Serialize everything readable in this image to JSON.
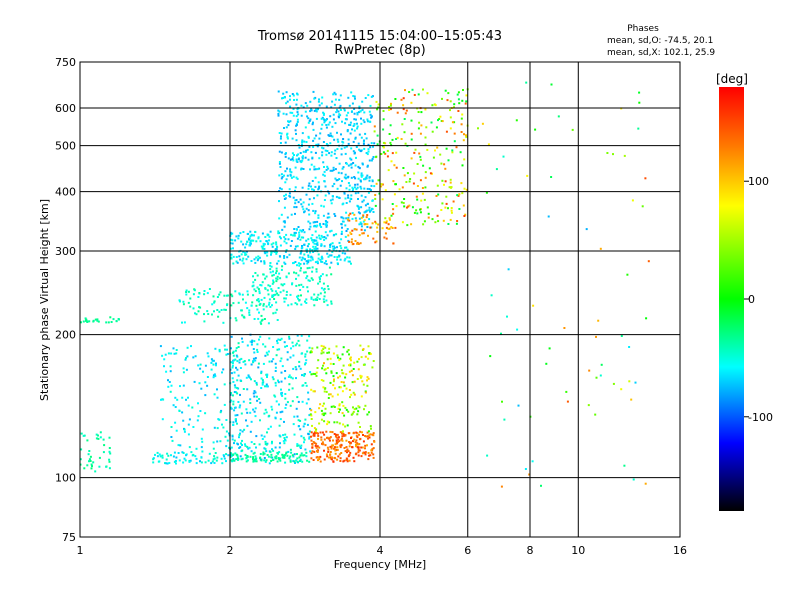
{
  "chart_data": {
    "type": "scatter",
    "title": "Tromsø 20141115 15:04:00–15:05:43",
    "subtitle": "RwPretec (8p)",
    "xlabel": "Frequency [MHz]",
    "ylabel": "Stationary phase Virtual Height [km]",
    "x_scale": "log",
    "y_scale": "log",
    "xlim": [
      1,
      16
    ],
    "ylim": [
      75,
      750
    ],
    "x_ticks": [
      1,
      2,
      4,
      6,
      8,
      10,
      16
    ],
    "y_ticks": [
      75,
      100,
      200,
      300,
      400,
      500,
      600,
      750
    ],
    "grid": true,
    "legend_placement": "top-right",
    "legend": {
      "title": "Phases",
      "line1": "mean, sd,O: -74.5, 20.1",
      "line2": "mean, sd,X: 102.1, 25.9"
    },
    "colorbar": {
      "unit": "[deg]",
      "range": [
        -180,
        180
      ],
      "ticks": [
        100,
        0,
        -100
      ],
      "placement": "right",
      "colormap": "rainbow"
    },
    "regions": [
      {
        "x": [
          1.0,
          1.15
        ],
        "y": [
          103,
          125
        ],
        "phase": [
          -65,
          -35
        ],
        "n": 40
      },
      {
        "x": [
          1.0,
          1.2
        ],
        "y": [
          212,
          218
        ],
        "phase": [
          -50,
          -35
        ],
        "n": 25
      },
      {
        "x": [
          1.55,
          2.5
        ],
        "y": [
          210,
          250
        ],
        "phase": [
          -80,
          -40
        ],
        "n": 120
      },
      {
        "x": [
          1.4,
          2.05
        ],
        "y": [
          107,
          113
        ],
        "phase": [
          -100,
          -55
        ],
        "n": 70
      },
      {
        "x": [
          1.45,
          2.1
        ],
        "y": [
          113,
          190
        ],
        "phase": [
          -105,
          -60
        ],
        "n": 160
      },
      {
        "x": [
          2.0,
          2.9
        ],
        "y": [
          107,
          200
        ],
        "phase": [
          -110,
          -50
        ],
        "n": 380
      },
      {
        "x": [
          2.0,
          2.9
        ],
        "y": [
          108,
          113
        ],
        "phase": [
          -60,
          -35
        ],
        "n": 90
      },
      {
        "x": [
          2.0,
          3.5
        ],
        "y": [
          280,
          330
        ],
        "phase": [
          -105,
          -65
        ],
        "n": 320
      },
      {
        "x": [
          2.2,
          3.2
        ],
        "y": [
          230,
          280
        ],
        "phase": [
          -80,
          -40
        ],
        "n": 150
      },
      {
        "x": [
          2.5,
          3.9
        ],
        "y": [
          330,
          650
        ],
        "phase": [
          -110,
          -75
        ],
        "n": 650
      },
      {
        "x": [
          3.9,
          6.0
        ],
        "y": [
          340,
          660
        ],
        "phase": [
          -30,
          160
        ],
        "n": 260
      },
      {
        "x": [
          3.4,
          4.3
        ],
        "y": [
          310,
          360
        ],
        "phase": [
          100,
          160
        ],
        "n": 60
      },
      {
        "x": [
          2.9,
          3.9
        ],
        "y": [
          108,
          125
        ],
        "phase": [
          120,
          165
        ],
        "n": 230
      },
      {
        "x": [
          2.9,
          3.9
        ],
        "y": [
          125,
          190
        ],
        "phase": [
          0,
          120
        ],
        "n": 200
      },
      {
        "x": [
          6.2,
          14.0
        ],
        "y": [
          90,
          680
        ],
        "phase": [
          -120,
          170
        ],
        "n": 70
      }
    ]
  }
}
